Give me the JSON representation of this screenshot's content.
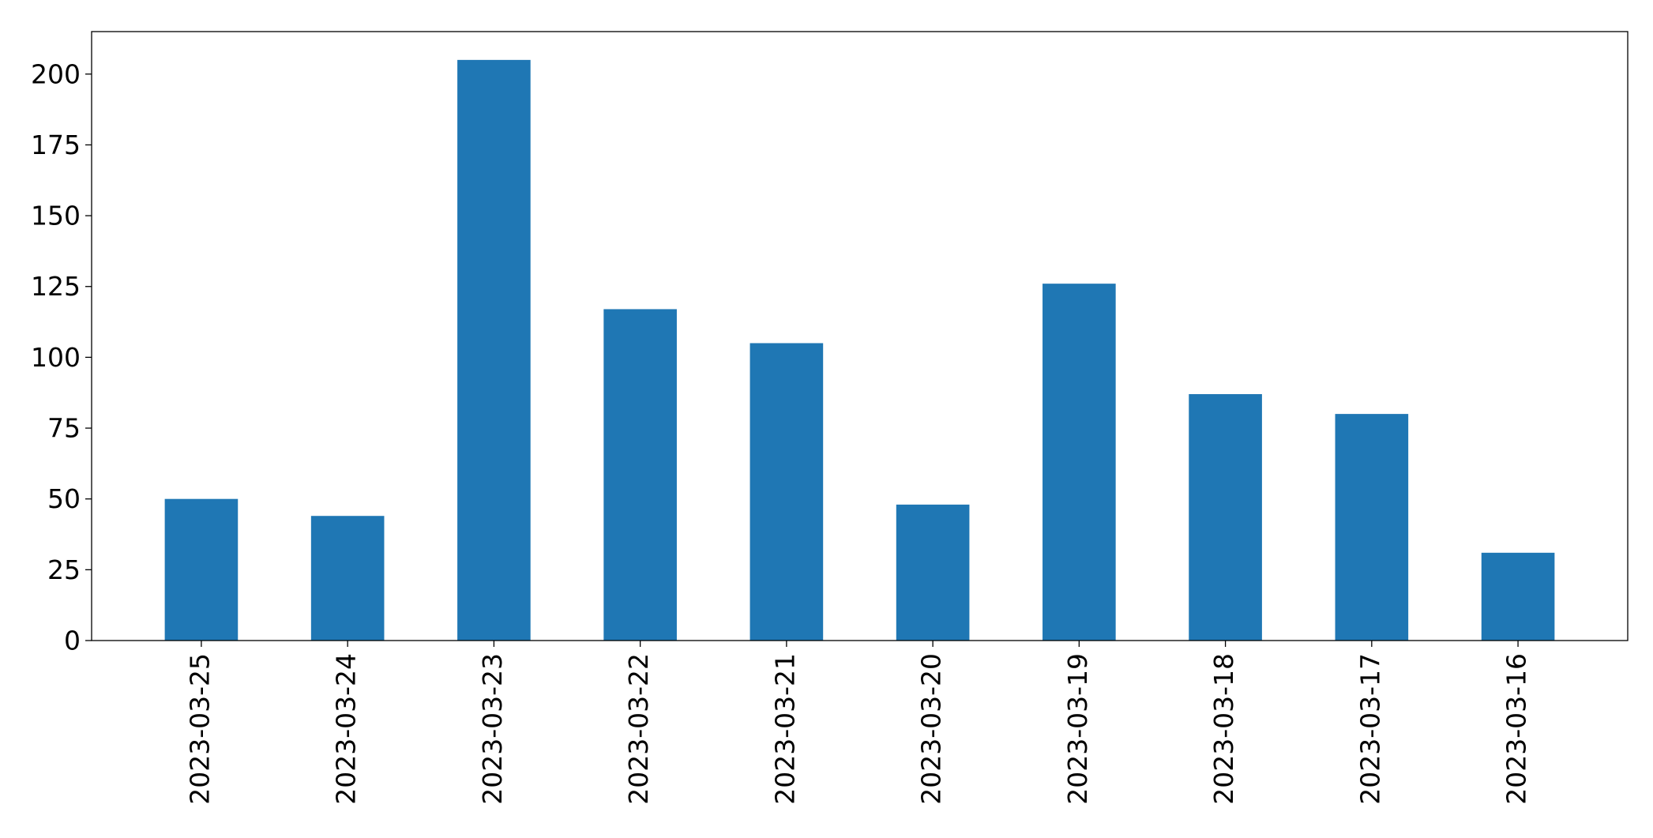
{
  "chart_data": {
    "type": "bar",
    "title": "",
    "xlabel": "",
    "ylabel": "",
    "categories": [
      "2023-03-25",
      "2023-03-24",
      "2023-03-23",
      "2023-03-22",
      "2023-03-21",
      "2023-03-20",
      "2023-03-19",
      "2023-03-18",
      "2023-03-17",
      "2023-03-16"
    ],
    "values": [
      50,
      44,
      205,
      117,
      105,
      48,
      126,
      87,
      80,
      31
    ],
    "ylim": [
      0,
      215
    ],
    "yticks": [
      0,
      25,
      50,
      75,
      100,
      125,
      150,
      175,
      200
    ],
    "bar_color": "#1f77b4",
    "grid": false,
    "legend": "none"
  }
}
